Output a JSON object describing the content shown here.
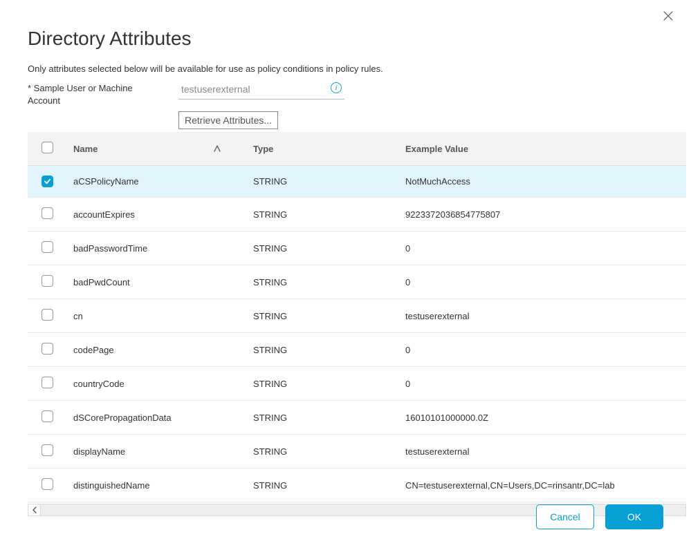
{
  "colors": {
    "accent": "#07a0d4",
    "header_bg": "#f3f3f3",
    "row_selected_bg": "#e2f4fb",
    "border": "#e8e8e8",
    "text": "#333333"
  },
  "title": "Directory Attributes",
  "description": "Only attributes selected below will be available for use as policy conditions in policy rules.",
  "form": {
    "sample_label": "* Sample User or Machine Account",
    "sample_value": "testuserexternal",
    "retrieve_btn": "Retrieve Attributes..."
  },
  "table": {
    "headers": {
      "name": "Name",
      "type": "Type",
      "example": "Example Value"
    },
    "rows": [
      {
        "checked": true,
        "name": "aCSPolicyName",
        "type": "STRING",
        "example": "NotMuchAccess"
      },
      {
        "checked": false,
        "name": "accountExpires",
        "type": "STRING",
        "example": "9223372036854775807"
      },
      {
        "checked": false,
        "name": "badPasswordTime",
        "type": "STRING",
        "example": "0"
      },
      {
        "checked": false,
        "name": "badPwdCount",
        "type": "STRING",
        "example": "0"
      },
      {
        "checked": false,
        "name": "cn",
        "type": "STRING",
        "example": "testuserexternal"
      },
      {
        "checked": false,
        "name": "codePage",
        "type": "STRING",
        "example": "0"
      },
      {
        "checked": false,
        "name": "countryCode",
        "type": "STRING",
        "example": "0"
      },
      {
        "checked": false,
        "name": "dSCorePropagationData",
        "type": "STRING",
        "example": "16010101000000.0Z"
      },
      {
        "checked": false,
        "name": "displayName",
        "type": "STRING",
        "example": "testuserexternal"
      },
      {
        "checked": false,
        "name": "distinguishedName",
        "type": "STRING",
        "example": "CN=testuserexternal,CN=Users,DC=rinsantr,DC=lab"
      }
    ]
  },
  "buttons": {
    "cancel": "Cancel",
    "ok": "OK"
  }
}
